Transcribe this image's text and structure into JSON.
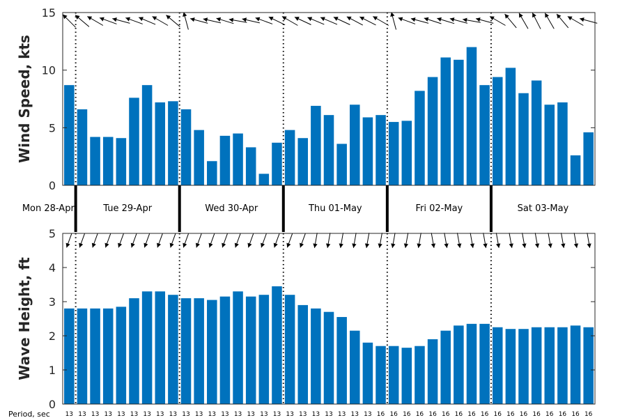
{
  "chart_data": [
    {
      "type": "bar",
      "ylabel": "Wind Speed, kts",
      "ylim": [
        0,
        15
      ],
      "yticks": [
        0,
        5,
        10,
        15
      ],
      "color": "#0072BD",
      "values": [
        8.7,
        6.6,
        4.2,
        4.2,
        4.1,
        7.6,
        8.7,
        7.2,
        7.3,
        6.6,
        4.8,
        2.1,
        4.3,
        4.5,
        3.3,
        1.0,
        3.7,
        4.8,
        4.1,
        6.9,
        6.1,
        3.6,
        7.0,
        5.9,
        6.1,
        5.5,
        5.6,
        8.2,
        9.4,
        11.1,
        10.9,
        12.0,
        8.7,
        9.4,
        10.2,
        8.0,
        9.1,
        7.0,
        7.2,
        2.6,
        4.6
      ],
      "direction_deg": [
        315,
        310,
        300,
        290,
        285,
        290,
        293,
        300,
        310,
        345,
        285,
        283,
        287,
        280,
        283,
        290,
        296,
        300,
        295,
        293,
        293,
        295,
        298,
        297,
        300,
        345,
        290,
        285,
        288,
        287,
        285,
        280,
        285,
        300,
        320,
        330,
        333,
        330,
        320,
        300,
        285
      ]
    },
    {
      "type": "bar",
      "ylabel": "Wave Height, ft",
      "ylim": [
        0,
        5
      ],
      "yticks": [
        0,
        1,
        2,
        3,
        4,
        5
      ],
      "color": "#0072BD",
      "values": [
        2.8,
        2.8,
        2.8,
        2.8,
        2.85,
        3.1,
        3.3,
        3.3,
        3.2,
        3.1,
        3.1,
        3.05,
        3.15,
        3.3,
        3.15,
        3.2,
        3.45,
        3.2,
        2.9,
        2.8,
        2.7,
        2.55,
        2.15,
        1.8,
        1.7,
        1.7,
        1.65,
        1.7,
        1.9,
        2.15,
        2.3,
        2.35,
        2.35,
        2.25,
        2.2,
        2.2,
        2.25,
        2.25,
        2.25,
        2.3,
        2.25
      ],
      "direction_deg": [
        200,
        200,
        200,
        200,
        200,
        200,
        200,
        200,
        200,
        200,
        200,
        200,
        200,
        200,
        200,
        200,
        200,
        200,
        200,
        190,
        190,
        190,
        190,
        190,
        190,
        190,
        190,
        190,
        170,
        170,
        170,
        170,
        170,
        170,
        170,
        170,
        170,
        170,
        170,
        170,
        170
      ]
    }
  ],
  "days": [
    {
      "label": "Mon 28-Apr",
      "start_index": -3
    },
    {
      "label": "Tue 29-Apr",
      "start_index": 1
    },
    {
      "label": "Wed 30-Apr",
      "start_index": 9
    },
    {
      "label": "Thu 01-May",
      "start_index": 17
    },
    {
      "label": "Fri 02-May",
      "start_index": 25
    },
    {
      "label": "Sat 03-May",
      "start_index": 33
    }
  ],
  "period": {
    "title": "Period, sec",
    "values": [
      13,
      13,
      13,
      13,
      13,
      13,
      13,
      13,
      13,
      13,
      13,
      13,
      13,
      13,
      13,
      13,
      13,
      13,
      13,
      13,
      13,
      13,
      13,
      13,
      16,
      16,
      16,
      16,
      16,
      16,
      16,
      16,
      16,
      16,
      16,
      16,
      16,
      16,
      16,
      16,
      16
    ]
  }
}
